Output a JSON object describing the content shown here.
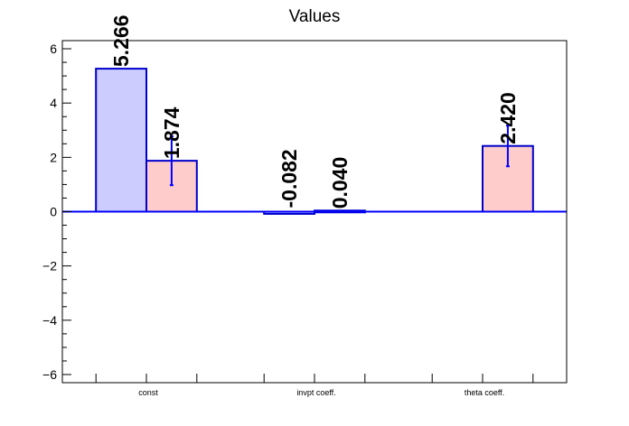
{
  "chart_data": {
    "type": "bar",
    "title": "Values",
    "xlabel": "",
    "ylabel": "",
    "categories": [
      "const",
      "invpt coeff.",
      "theta coeff."
    ],
    "ylim": [
      -6.3,
      6.3
    ],
    "yticks": [
      -6,
      -4,
      -2,
      0,
      2,
      4,
      6
    ],
    "ytick_labels": [
      "−6",
      "−4",
      "−2",
      "0",
      "2",
      "4",
      "6"
    ],
    "grid": false,
    "series": [
      {
        "fill": "#ccccff",
        "stroke": "#0000cc",
        "values": [
          5.266,
          -0.082,
          null
        ],
        "labels": [
          "5.266",
          "-0.082",
          ""
        ],
        "errors": [
          null,
          null,
          null
        ]
      },
      {
        "fill": "#ffcccc",
        "stroke": "#0000cc",
        "values": [
          1.874,
          0.04,
          2.42
        ],
        "labels": [
          "1.874",
          "0.040",
          "2.420"
        ],
        "errors": [
          0.9,
          null,
          0.75
        ]
      }
    ]
  }
}
